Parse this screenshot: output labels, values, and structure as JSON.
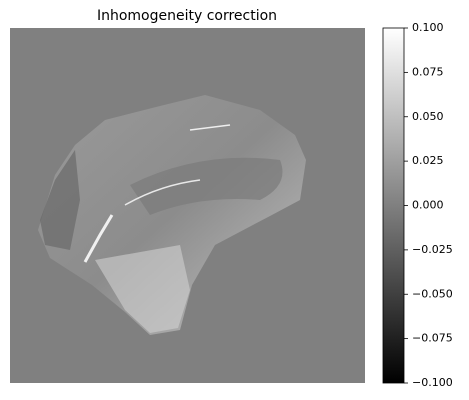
{
  "chart_data": {
    "type": "image",
    "title": "Inhomogeneity correction",
    "background_color": "#808080",
    "colorbar": {
      "cmap_colors": [
        "#000000",
        "#ffffff"
      ],
      "clim": [
        -0.1,
        0.1
      ],
      "ticks": [
        {
          "value": 0.1,
          "label": "0.100"
        },
        {
          "value": 0.075,
          "label": "0.075"
        },
        {
          "value": 0.05,
          "label": "0.050"
        },
        {
          "value": 0.025,
          "label": "0.025"
        },
        {
          "value": 0,
          "label": "0.000"
        },
        {
          "value": -0.025,
          "label": "−0.025"
        },
        {
          "value": -0.05,
          "label": "−0.050"
        },
        {
          "value": -0.075,
          "label": "−0.075"
        },
        {
          "value": -0.1,
          "label": "−0.100"
        }
      ]
    }
  }
}
